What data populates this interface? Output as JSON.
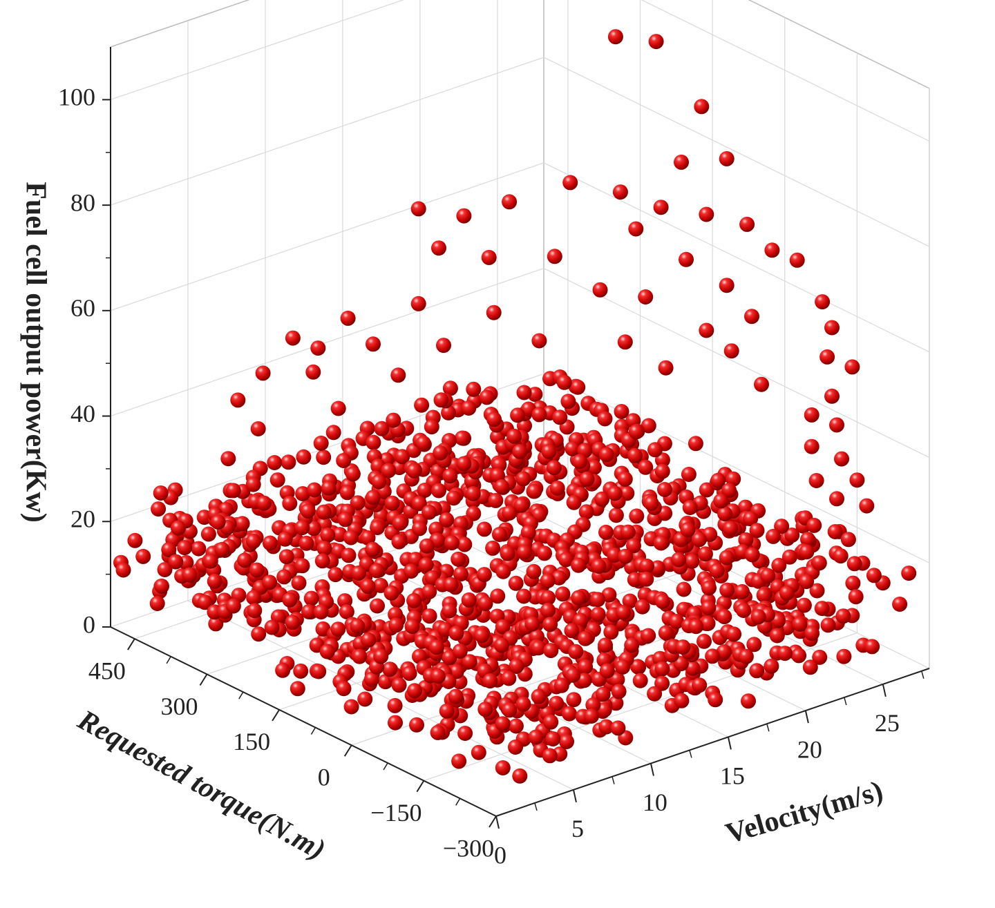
{
  "chart_data": {
    "type": "scatter",
    "subtype": "3d-scatter",
    "title": "",
    "marker_color": "#e01010",
    "marker_shape": "shaded-sphere",
    "grid": true,
    "axes": {
      "z": {
        "label": "Fuel cell output power(Kw)",
        "range": [
          0,
          110
        ],
        "ticks": [
          0,
          20,
          40,
          60,
          80,
          100
        ],
        "tick_labels": [
          "0",
          "20",
          "40",
          "60",
          "80",
          "100"
        ]
      },
      "torque": {
        "label": "Requested torque(N.m)",
        "range": [
          -300,
          500
        ],
        "ticks": [
          450,
          300,
          150,
          0,
          -150,
          -300
        ],
        "tick_labels": [
          "450",
          "300",
          "150",
          "0",
          "−150",
          "−300"
        ]
      },
      "velocity": {
        "label": "Velocity(m/s)",
        "range": [
          0,
          28
        ],
        "ticks": [
          0,
          5,
          10,
          15,
          20,
          25
        ],
        "tick_labels": [
          "0",
          "5",
          "10",
          "15",
          "20",
          "25"
        ]
      }
    },
    "point_count_note": "",
    "points_high": [
      {
        "torque": 30,
        "velocity": 18,
        "power": 115
      },
      {
        "torque": 10,
        "velocity": 20,
        "power": 113
      },
      {
        "torque": -20,
        "velocity": 22,
        "power": 100
      },
      {
        "torque": 60,
        "velocity": 16,
        "power": 88
      },
      {
        "torque": 20,
        "velocity": 18,
        "power": 86
      },
      {
        "torque": -10,
        "velocity": 21,
        "power": 90
      },
      {
        "torque": -40,
        "velocity": 23,
        "power": 90
      },
      {
        "torque": 150,
        "velocity": 9,
        "power": 86
      },
      {
        "torque": 120,
        "velocity": 11,
        "power": 84
      },
      {
        "torque": 90,
        "velocity": 13,
        "power": 86
      },
      {
        "torque": 0,
        "velocity": 20,
        "power": 82
      },
      {
        "torque": -30,
        "velocity": 22,
        "power": 80
      },
      {
        "torque": -50,
        "velocity": 24,
        "power": 77
      },
      {
        "torque": 100,
        "velocity": 12,
        "power": 76
      },
      {
        "torque": 60,
        "velocity": 15,
        "power": 75
      },
      {
        "torque": 140,
        "velocity": 10,
        "power": 78
      },
      {
        "torque": 20,
        "velocity": 19,
        "power": 78
      },
      {
        "torque": -70,
        "velocity": 25,
        "power": 72
      },
      {
        "torque": -20,
        "velocity": 21,
        "power": 72
      },
      {
        "torque": 30,
        "velocity": 17,
        "power": 68
      },
      {
        "torque": 200,
        "velocity": 6,
        "power": 66
      },
      {
        "torque": 150,
        "velocity": 9,
        "power": 68
      },
      {
        "torque": 90,
        "velocity": 12,
        "power": 66
      },
      {
        "torque": 0,
        "velocity": 19,
        "power": 66
      },
      {
        "torque": -40,
        "velocity": 23,
        "power": 66
      },
      {
        "torque": -90,
        "velocity": 26,
        "power": 70
      },
      {
        "torque": 250,
        "velocity": 4,
        "power": 62
      },
      {
        "torque": 230,
        "velocity": 5,
        "power": 60
      },
      {
        "torque": 180,
        "velocity": 7,
        "power": 61
      },
      {
        "torque": 130,
        "velocity": 10,
        "power": 60
      },
      {
        "torque": 60,
        "velocity": 14,
        "power": 60
      },
      {
        "torque": 10,
        "velocity": 18,
        "power": 58
      },
      {
        "torque": -30,
        "velocity": 22,
        "power": 58
      },
      {
        "torque": -60,
        "velocity": 24,
        "power": 60
      },
      {
        "torque": -110,
        "velocity": 27,
        "power": 62
      },
      {
        "torque": -130,
        "velocity": 27,
        "power": 58
      },
      {
        "torque": 280,
        "velocity": 3,
        "power": 55
      },
      {
        "torque": 240,
        "velocity": 5,
        "power": 55
      },
      {
        "torque": 160,
        "velocity": 8,
        "power": 55
      },
      {
        "torque": 100,
        "velocity": 11,
        "power": 52
      },
      {
        "torque": 40,
        "velocity": 15,
        "power": 52
      },
      {
        "torque": -10,
        "velocity": 20,
        "power": 52
      },
      {
        "torque": -50,
        "velocity": 23,
        "power": 54
      },
      {
        "torque": -120,
        "velocity": 27,
        "power": 52
      },
      {
        "torque": -140,
        "velocity": 28,
        "power": 50
      },
      {
        "torque": 300,
        "velocity": 2,
        "power": 50
      },
      {
        "torque": 220,
        "velocity": 6,
        "power": 48
      },
      {
        "torque": 170,
        "velocity": 8,
        "power": 46
      },
      {
        "torque": 110,
        "velocity": 11,
        "power": 48
      },
      {
        "torque": 60,
        "velocity": 14,
        "power": 46
      },
      {
        "torque": -80,
        "velocity": 24,
        "power": 48
      },
      {
        "torque": -130,
        "velocity": 27,
        "power": 45
      },
      {
        "torque": 290,
        "velocity": 3,
        "power": 44
      },
      {
        "torque": 230,
        "velocity": 6,
        "power": 43
      },
      {
        "torque": 140,
        "velocity": 9,
        "power": 42
      },
      {
        "torque": 80,
        "velocity": 13,
        "power": 42
      },
      {
        "torque": 20,
        "velocity": 17,
        "power": 44
      },
      {
        "torque": -120,
        "velocity": 26,
        "power": 42
      },
      {
        "torque": -140,
        "velocity": 27,
        "power": 40
      },
      {
        "torque": 320,
        "velocity": 2,
        "power": 38
      },
      {
        "torque": 260,
        "velocity": 5,
        "power": 38
      },
      {
        "torque": 180,
        "velocity": 8,
        "power": 36
      },
      {
        "torque": 120,
        "velocity": 11,
        "power": 37
      },
      {
        "torque": 40,
        "velocity": 16,
        "power": 36
      },
      {
        "torque": -40,
        "velocity": 21,
        "power": 38
      },
      {
        "torque": -120,
        "velocity": 26,
        "power": 36
      },
      {
        "torque": -150,
        "velocity": 27,
        "power": 34
      },
      {
        "torque": 300,
        "velocity": 3,
        "power": 33
      },
      {
        "torque": 240,
        "velocity": 6,
        "power": 32
      },
      {
        "torque": 200,
        "velocity": 8,
        "power": 33
      },
      {
        "torque": 140,
        "velocity": 10,
        "power": 32
      },
      {
        "torque": 70,
        "velocity": 14,
        "power": 31
      },
      {
        "torque": 10,
        "velocity": 18,
        "power": 32
      },
      {
        "torque": -130,
        "velocity": 26,
        "power": 30
      },
      {
        "torque": -150,
        "velocity": 28,
        "power": 29
      },
      {
        "torque": 310,
        "velocity": 4,
        "power": 28
      },
      {
        "torque": 250,
        "velocity": 6,
        "power": 27
      },
      {
        "torque": 160,
        "velocity": 10,
        "power": 27
      },
      {
        "torque": 90,
        "velocity": 13,
        "power": 27
      },
      {
        "torque": -60,
        "velocity": 22,
        "power": 27
      },
      {
        "torque": -140,
        "velocity": 27,
        "power": 26
      },
      {
        "torque": -170,
        "velocity": 28,
        "power": 25
      }
    ],
    "cluster_bands": [
      {
        "description": "dense low-power band",
        "power_range": [
          2,
          24
        ],
        "torque_range": [
          -300,
          500
        ],
        "velocity_range": [
          0,
          28
        ]
      }
    ]
  }
}
